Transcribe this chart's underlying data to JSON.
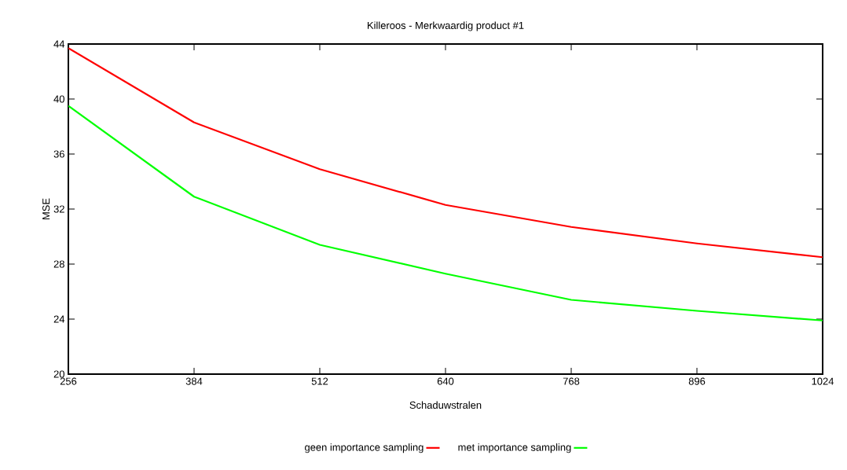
{
  "chart_data": {
    "type": "line",
    "title": "Killeroos - Merkwaardig product #1",
    "xlabel": "Schaduwstralen",
    "ylabel": "MSE",
    "x": [
      256,
      384,
      512,
      640,
      768,
      896,
      1024
    ],
    "series": [
      {
        "name": "geen importance sampling",
        "color": "#ff0000",
        "values": [
          43.7,
          38.3,
          34.9,
          32.3,
          30.7,
          29.5,
          28.5
        ]
      },
      {
        "name": "met importance sampling",
        "color": "#00ff00",
        "values": [
          39.5,
          32.9,
          29.4,
          27.3,
          25.4,
          24.6,
          23.9
        ]
      }
    ],
    "xlim": [
      256,
      1024
    ],
    "ylim": [
      20,
      44
    ],
    "xticks": [
      256,
      384,
      512,
      640,
      768,
      896,
      1024
    ],
    "yticks": [
      20,
      24,
      28,
      32,
      36,
      40,
      44
    ],
    "grid": false,
    "legend": "bottom",
    "marker": "none",
    "line_style": "solid"
  }
}
